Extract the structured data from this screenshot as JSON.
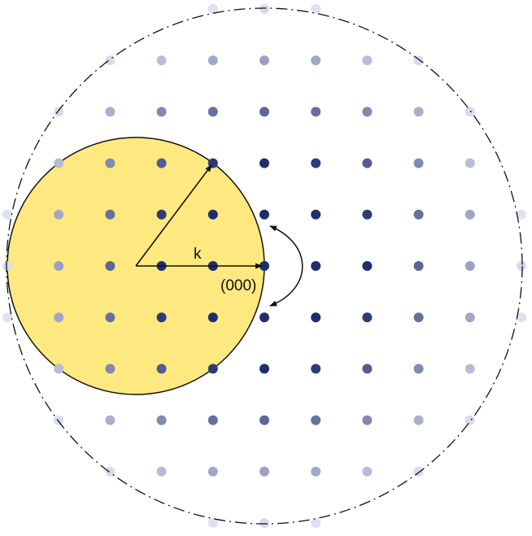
{
  "labels": {
    "wavevector": "k",
    "origin": "(000)"
  }
}
